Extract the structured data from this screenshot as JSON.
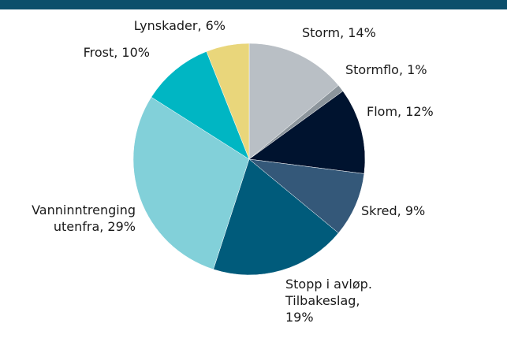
{
  "chart_data": {
    "type": "pie",
    "labels": [
      [
        "Storm, 14%"
      ],
      [
        "Stormflo, 1%"
      ],
      [
        "Flom, 12%"
      ],
      [
        "Skred, 9%"
      ],
      [
        "Stopp i avløp.",
        "Tilbakeslag,",
        "19%"
      ],
      [
        "Vanninntrenging",
        "utenfra, 29%"
      ],
      [
        "Frost, 10%"
      ],
      [
        "Lynskader, 6%"
      ]
    ],
    "values": [
      14,
      1,
      12,
      9,
      19,
      29,
      10,
      6
    ],
    "colors": [
      "#b9bfc5",
      "#8c959c",
      "#00132f",
      "#345879",
      "#005b7b",
      "#82d0d9",
      "#00b6c3",
      "#e9d67b"
    ]
  }
}
